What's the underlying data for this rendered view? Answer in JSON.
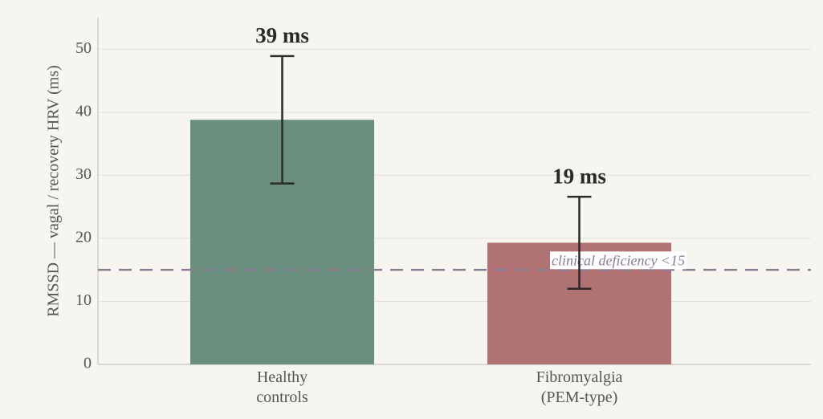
{
  "chart_data": {
    "type": "bar",
    "y_label": "RMSSD — vagal / recovery HRV (ms)",
    "categories": [
      "Healthy controls",
      "Fibromyalgia (PEM-type)"
    ],
    "values": [
      38.8,
      19.3
    ],
    "errors": [
      10.1,
      7.3
    ],
    "value_labels": [
      "39 ms",
      "19 ms"
    ],
    "colors": [
      "#6b8f7e",
      "#b07272"
    ],
    "reference_line": {
      "value": 15,
      "label": "clinical deficiency <15",
      "color": "#8a7d93"
    },
    "ylim": [
      0,
      55
    ],
    "yticks": [
      0,
      10,
      20,
      30,
      40,
      50
    ],
    "grid": true
  }
}
